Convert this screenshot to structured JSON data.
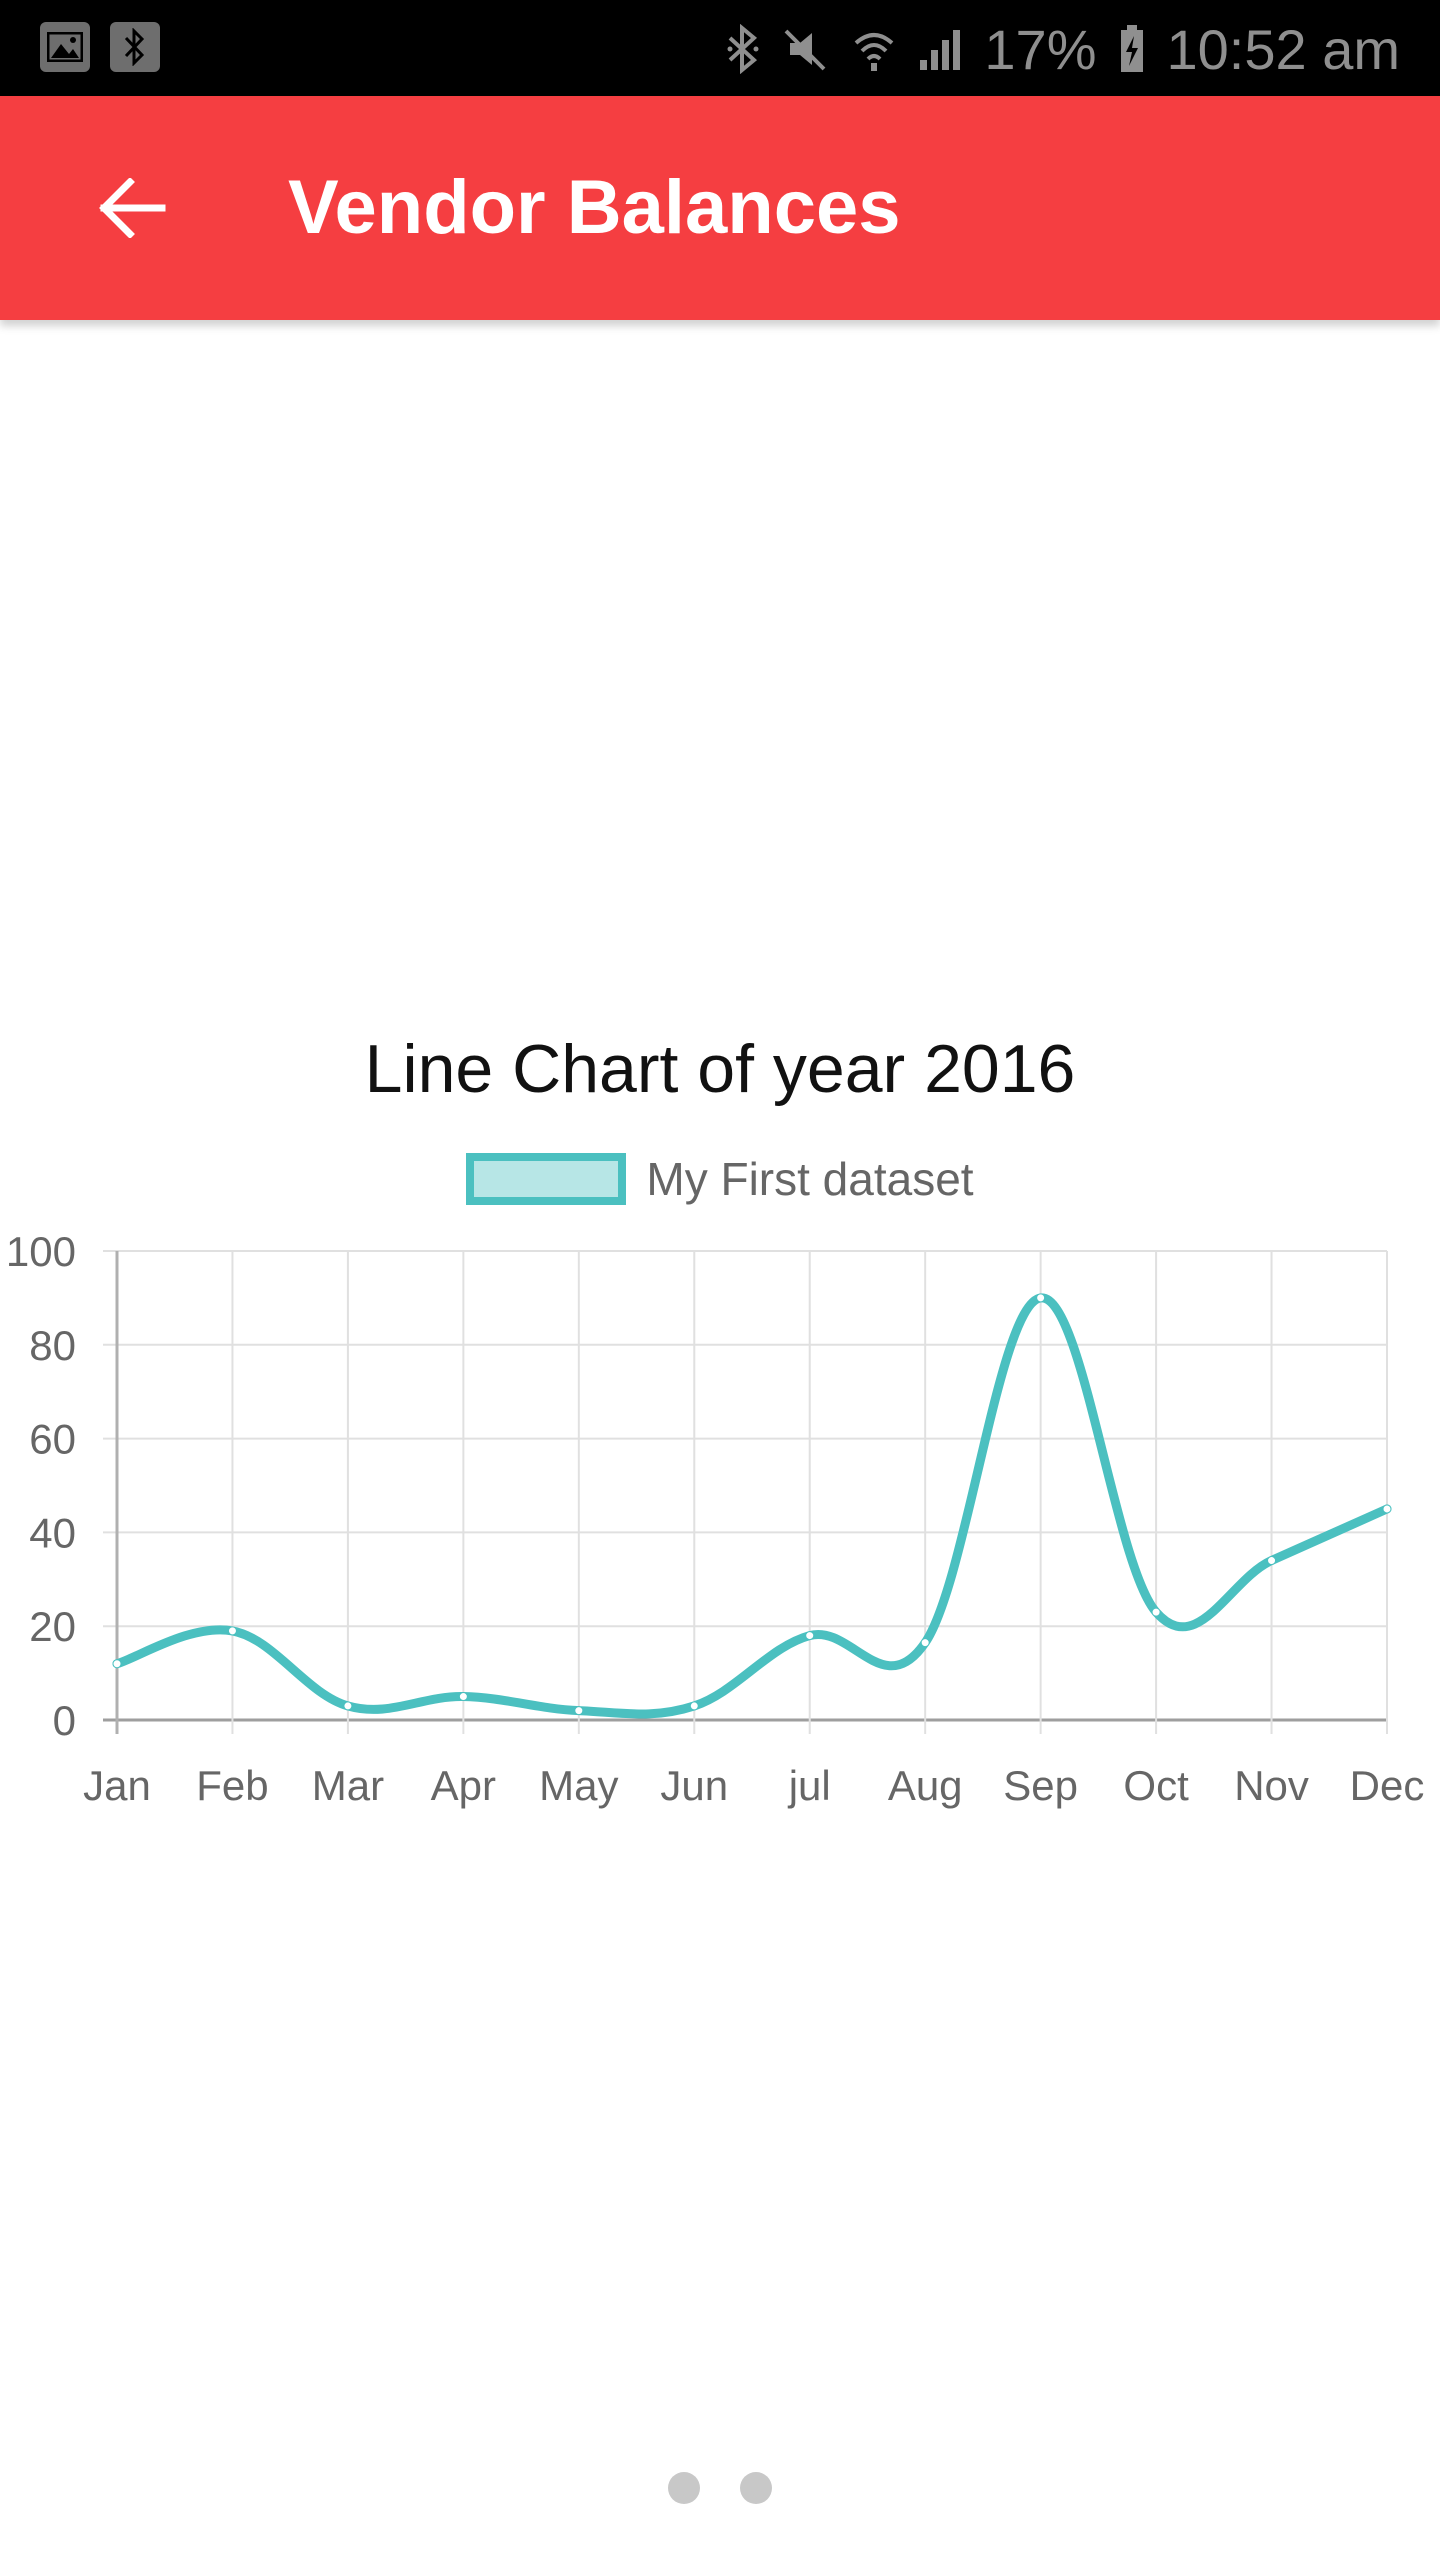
{
  "status_bar": {
    "battery": "17%",
    "time": "10:52 am"
  },
  "app_bar": {
    "title": "Vendor Balances",
    "back_icon": "arrow-back-icon"
  },
  "chart_data": {
    "type": "line",
    "title": "Line Chart of year 2016",
    "categories": [
      "Jan",
      "Feb",
      "Mar",
      "Apr",
      "May",
      "Jun",
      "jul",
      "Aug",
      "Sep",
      "Oct",
      "Nov",
      "Dec"
    ],
    "series": [
      {
        "name": "My First dataset",
        "values": [
          12,
          19,
          3,
          5,
          2,
          3,
          18,
          16.5,
          90,
          23,
          34,
          45
        ],
        "color": "#4bc0c0"
      }
    ],
    "ylim": [
      0,
      100
    ],
    "yticks": [
      0,
      20,
      40,
      60,
      80,
      100
    ],
    "grid": true,
    "legend": "top-center",
    "xlabel": "",
    "ylabel": ""
  },
  "pager": {
    "pages": 2
  }
}
